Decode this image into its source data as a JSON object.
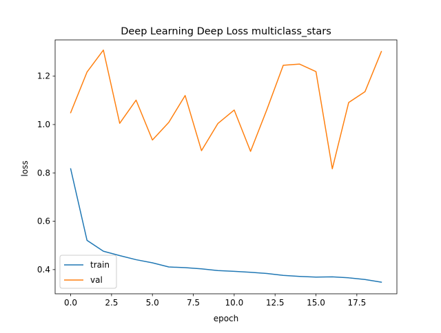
{
  "chart_data": {
    "type": "line",
    "title": "Deep Learning Deep Loss multiclass_stars",
    "xlabel": "epoch",
    "ylabel": "loss",
    "xlim": [
      -0.95,
      19.95
    ],
    "ylim": [
      0.3,
      1.35
    ],
    "x": [
      0,
      1,
      2,
      3,
      4,
      5,
      6,
      7,
      8,
      9,
      10,
      11,
      12,
      13,
      14,
      15,
      16,
      17,
      18,
      19
    ],
    "xticks": [
      0.0,
      2.5,
      5.0,
      7.5,
      10.0,
      12.5,
      15.0,
      17.5
    ],
    "xtick_labels": [
      "0.0",
      "2.5",
      "5.0",
      "7.5",
      "10.0",
      "12.5",
      "15.0",
      "17.5"
    ],
    "yticks": [
      0.4,
      0.6,
      0.8,
      1.0,
      1.2
    ],
    "ytick_labels": [
      "0.4",
      "0.6",
      "0.8",
      "1.0",
      "1.2"
    ],
    "grid": false,
    "legend_position": "lower-left",
    "series": [
      {
        "name": "train",
        "color": "#1f77b4",
        "values": [
          0.817,
          0.521,
          0.476,
          0.458,
          0.441,
          0.428,
          0.411,
          0.408,
          0.403,
          0.396,
          0.393,
          0.389,
          0.384,
          0.376,
          0.372,
          0.369,
          0.37,
          0.366,
          0.359,
          0.348
        ]
      },
      {
        "name": "val",
        "color": "#ff7f0e",
        "values": [
          1.049,
          1.217,
          1.308,
          1.005,
          1.101,
          0.936,
          1.009,
          1.12,
          0.892,
          1.004,
          1.06,
          0.889,
          1.062,
          1.245,
          1.25,
          1.219,
          0.817,
          1.091,
          1.136,
          1.302
        ]
      }
    ]
  }
}
